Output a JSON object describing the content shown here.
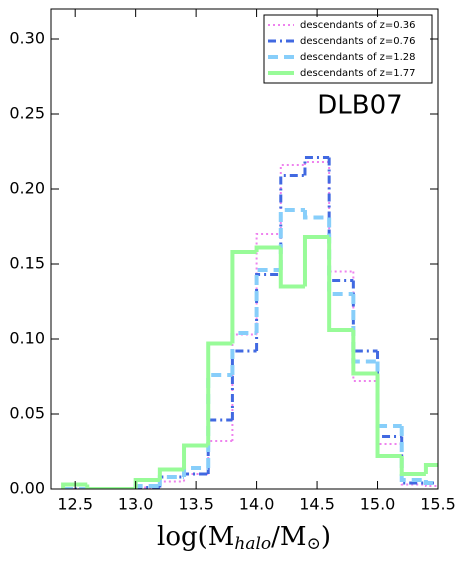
{
  "chart_data": {
    "type": "histogram",
    "xlabel": [
      "log(M",
      "halo",
      "/M",
      "⊙",
      ")"
    ],
    "annotation": "DLB07",
    "bins": [
      12.4,
      12.6,
      12.8,
      13.0,
      13.2,
      13.4,
      13.6,
      13.8,
      14.0,
      14.2,
      14.4,
      14.6,
      14.8,
      15.0,
      15.2,
      15.4,
      15.6
    ],
    "series": [
      {
        "name": "descendants of z=0.36",
        "color": "#ee82ee",
        "linestyle": "dotted",
        "values": [
          0,
          0,
          0,
          0.001,
          0.005,
          0.01,
          0.032,
          0.103,
          0.17,
          0.216,
          0.218,
          0.145,
          0.072,
          0.03,
          0.003,
          0.002
        ]
      },
      {
        "name": "descendants of z=0.76",
        "color": "#4169e1",
        "linestyle": "dashdot",
        "values": [
          0,
          0,
          0,
          0.001,
          0.008,
          0.01,
          0.046,
          0.092,
          0.143,
          0.209,
          0.221,
          0.139,
          0.092,
          0.035,
          0.004,
          0.004
        ]
      },
      {
        "name": "descendants of z=1.28",
        "color": "#87cefa",
        "linestyle": "dashed",
        "values": [
          0,
          0,
          0,
          0.002,
          0.008,
          0.014,
          0.076,
          0.104,
          0.146,
          0.186,
          0.181,
          0.13,
          0.085,
          0.042,
          0.006,
          0.004
        ]
      },
      {
        "name": "descendants of z=1.77",
        "color": "#98fb98",
        "linestyle": "solid",
        "values": [
          0.003,
          0,
          0,
          0.006,
          0.013,
          0.029,
          0.097,
          0.158,
          0.161,
          0.135,
          0.168,
          0.106,
          0.077,
          0.022,
          0.01,
          0.016
        ]
      }
    ],
    "xlim": [
      12.3,
      15.5
    ],
    "xticks": [
      12.5,
      {
        "value": 13,
        "label": "13.0"
      },
      13.5,
      {
        "value": 14,
        "label": "14.0"
      },
      14.5,
      {
        "value": 15,
        "label": "15.0"
      },
      15.5
    ],
    "ylim": [
      0,
      0.32
    ],
    "yticks": [
      {
        "value": 0,
        "label": "0.00"
      },
      0.05,
      {
        "value": 0.1,
        "label": "0.10"
      },
      0.15,
      {
        "value": 0.2,
        "label": "0.20"
      },
      0.25,
      {
        "value": 0.3,
        "label": "0.30"
      }
    ],
    "legend": "upper right"
  }
}
